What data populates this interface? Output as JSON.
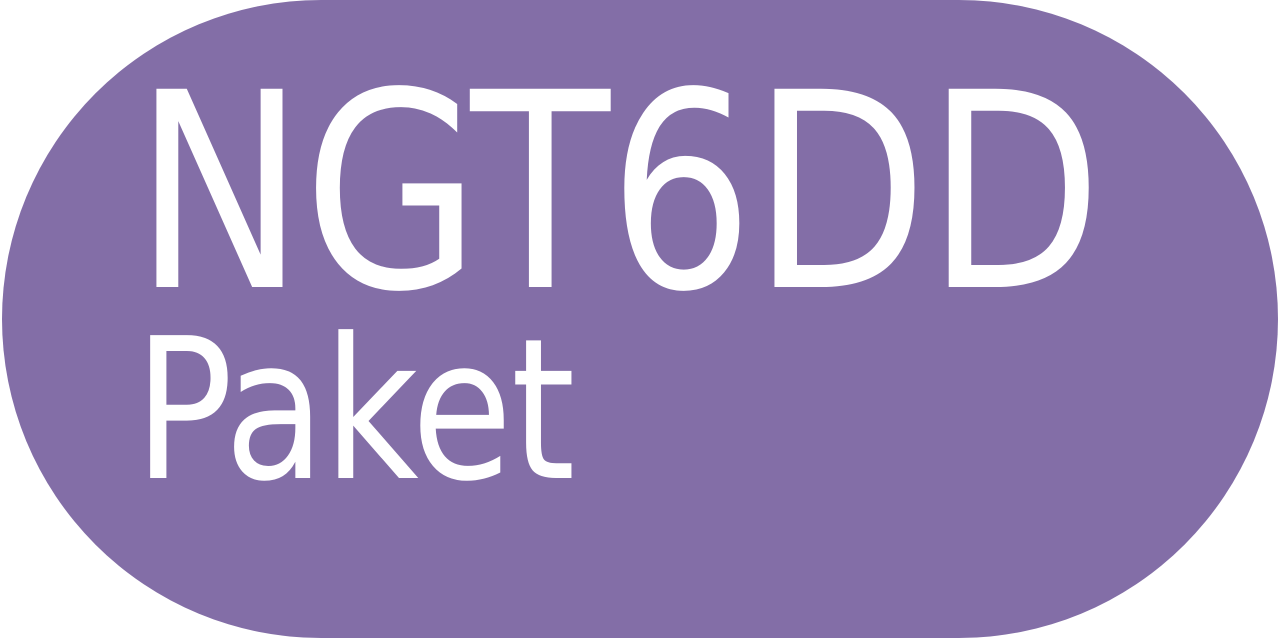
{
  "badge": {
    "line1": "NGT6DD",
    "line2": "Paket",
    "background_color": "#836ea7",
    "text_color": "#ffffff"
  }
}
